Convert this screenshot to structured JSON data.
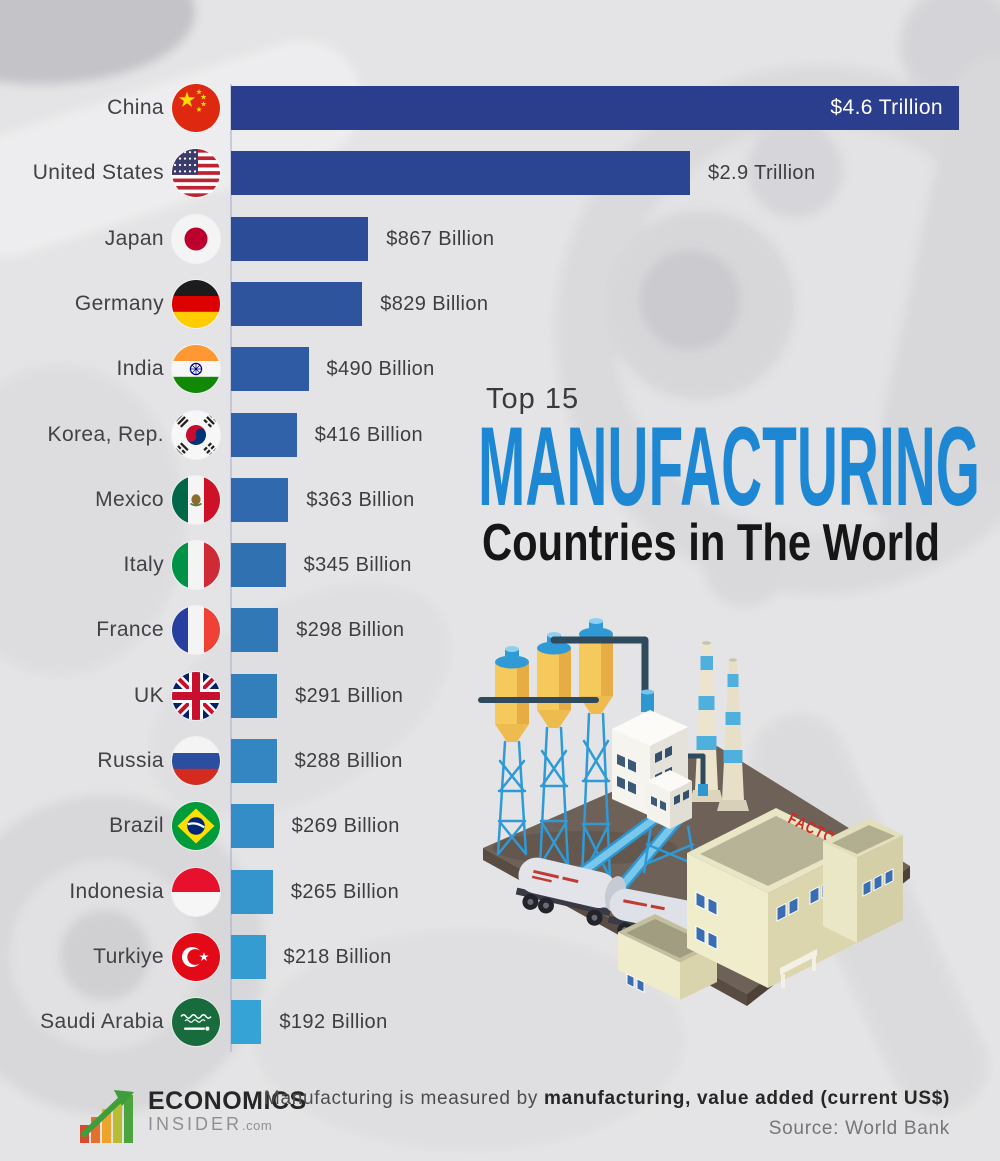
{
  "title": {
    "kicker": "Top 15",
    "main": "MANUFACTURING",
    "sub": "Countries in The World"
  },
  "chart_data": {
    "type": "bar",
    "orientation": "horizontal",
    "title": "Top 15 Manufacturing Countries in The World",
    "categories": [
      "China",
      "United States",
      "Japan",
      "Germany",
      "India",
      "Korea, Rep.",
      "Mexico",
      "Italy",
      "France",
      "UK",
      "Russia",
      "Brazil",
      "Indonesia",
      "Turkiye",
      "Saudi Arabia"
    ],
    "series": [
      {
        "name": "Manufacturing, value added (current US$), billions",
        "values": [
          4600,
          2900,
          867,
          829,
          490,
          416,
          363,
          345,
          298,
          291,
          288,
          269,
          265,
          218,
          192
        ]
      }
    ],
    "value_labels": [
      "$4.6 Trillion",
      "$2.9 Trillion",
      "$867 Billion",
      "$829 Billion",
      "$490 Billion",
      "$416 Billion",
      "$363 Billion",
      "$345 Billion",
      "$298 Billion",
      "$291 Billion",
      "$288 Billion",
      "$269 Billion",
      "$265 Billion",
      "$218 Billion",
      "$192 Billion"
    ],
    "flags": [
      "cn",
      "us",
      "jp",
      "de",
      "in",
      "kr",
      "mx",
      "it",
      "fr",
      "gb",
      "ru",
      "br",
      "id",
      "tr",
      "sa"
    ],
    "bar_colors": [
      "#2b3e8e",
      "#2c4593",
      "#2d4c98",
      "#2d549d",
      "#2e5ba3",
      "#2f62a8",
      "#3069ad",
      "#3071b2",
      "#3178b7",
      "#327fbc",
      "#3386c1",
      "#348dc7",
      "#3495cc",
      "#359cd1",
      "#36a3d6"
    ],
    "x_max": 4600,
    "xlabel": "",
    "ylabel": "",
    "grid": false,
    "legend": "none",
    "value_label_inside_bar_index": 0
  },
  "factory": {
    "sign": "FACTORY"
  },
  "logo": {
    "line1": "ECONOMICS",
    "line2": "INSIDER",
    "tld": ".com"
  },
  "footer": {
    "note_prefix": "Manufacturing is measured by ",
    "note_bold": "manufacturing, value added (current US$)",
    "source": "Source: World Bank"
  }
}
